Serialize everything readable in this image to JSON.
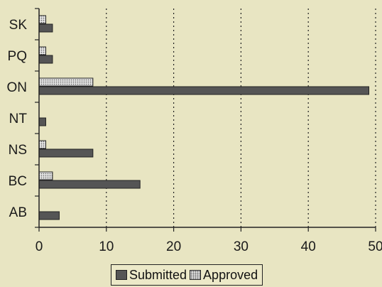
{
  "chart_data": {
    "type": "bar",
    "orientation": "horizontal",
    "categories": [
      "SK",
      "PQ",
      "ON",
      "NT",
      "NS",
      "BC",
      "AB"
    ],
    "series": [
      {
        "name": "Submitted",
        "values": [
          2,
          2,
          49,
          1,
          8,
          15,
          3
        ],
        "color": "#555555"
      },
      {
        "name": "Approved",
        "values": [
          1,
          1,
          8,
          0,
          1,
          2,
          0
        ],
        "color": "#dddddd"
      }
    ],
    "xlim": [
      0,
      50
    ],
    "xticks": [
      "0",
      "10",
      "20",
      "30",
      "40",
      "50"
    ],
    "grid": "vertical dotted",
    "legend_position": "bottom",
    "title": "",
    "xlabel": "",
    "ylabel": ""
  }
}
